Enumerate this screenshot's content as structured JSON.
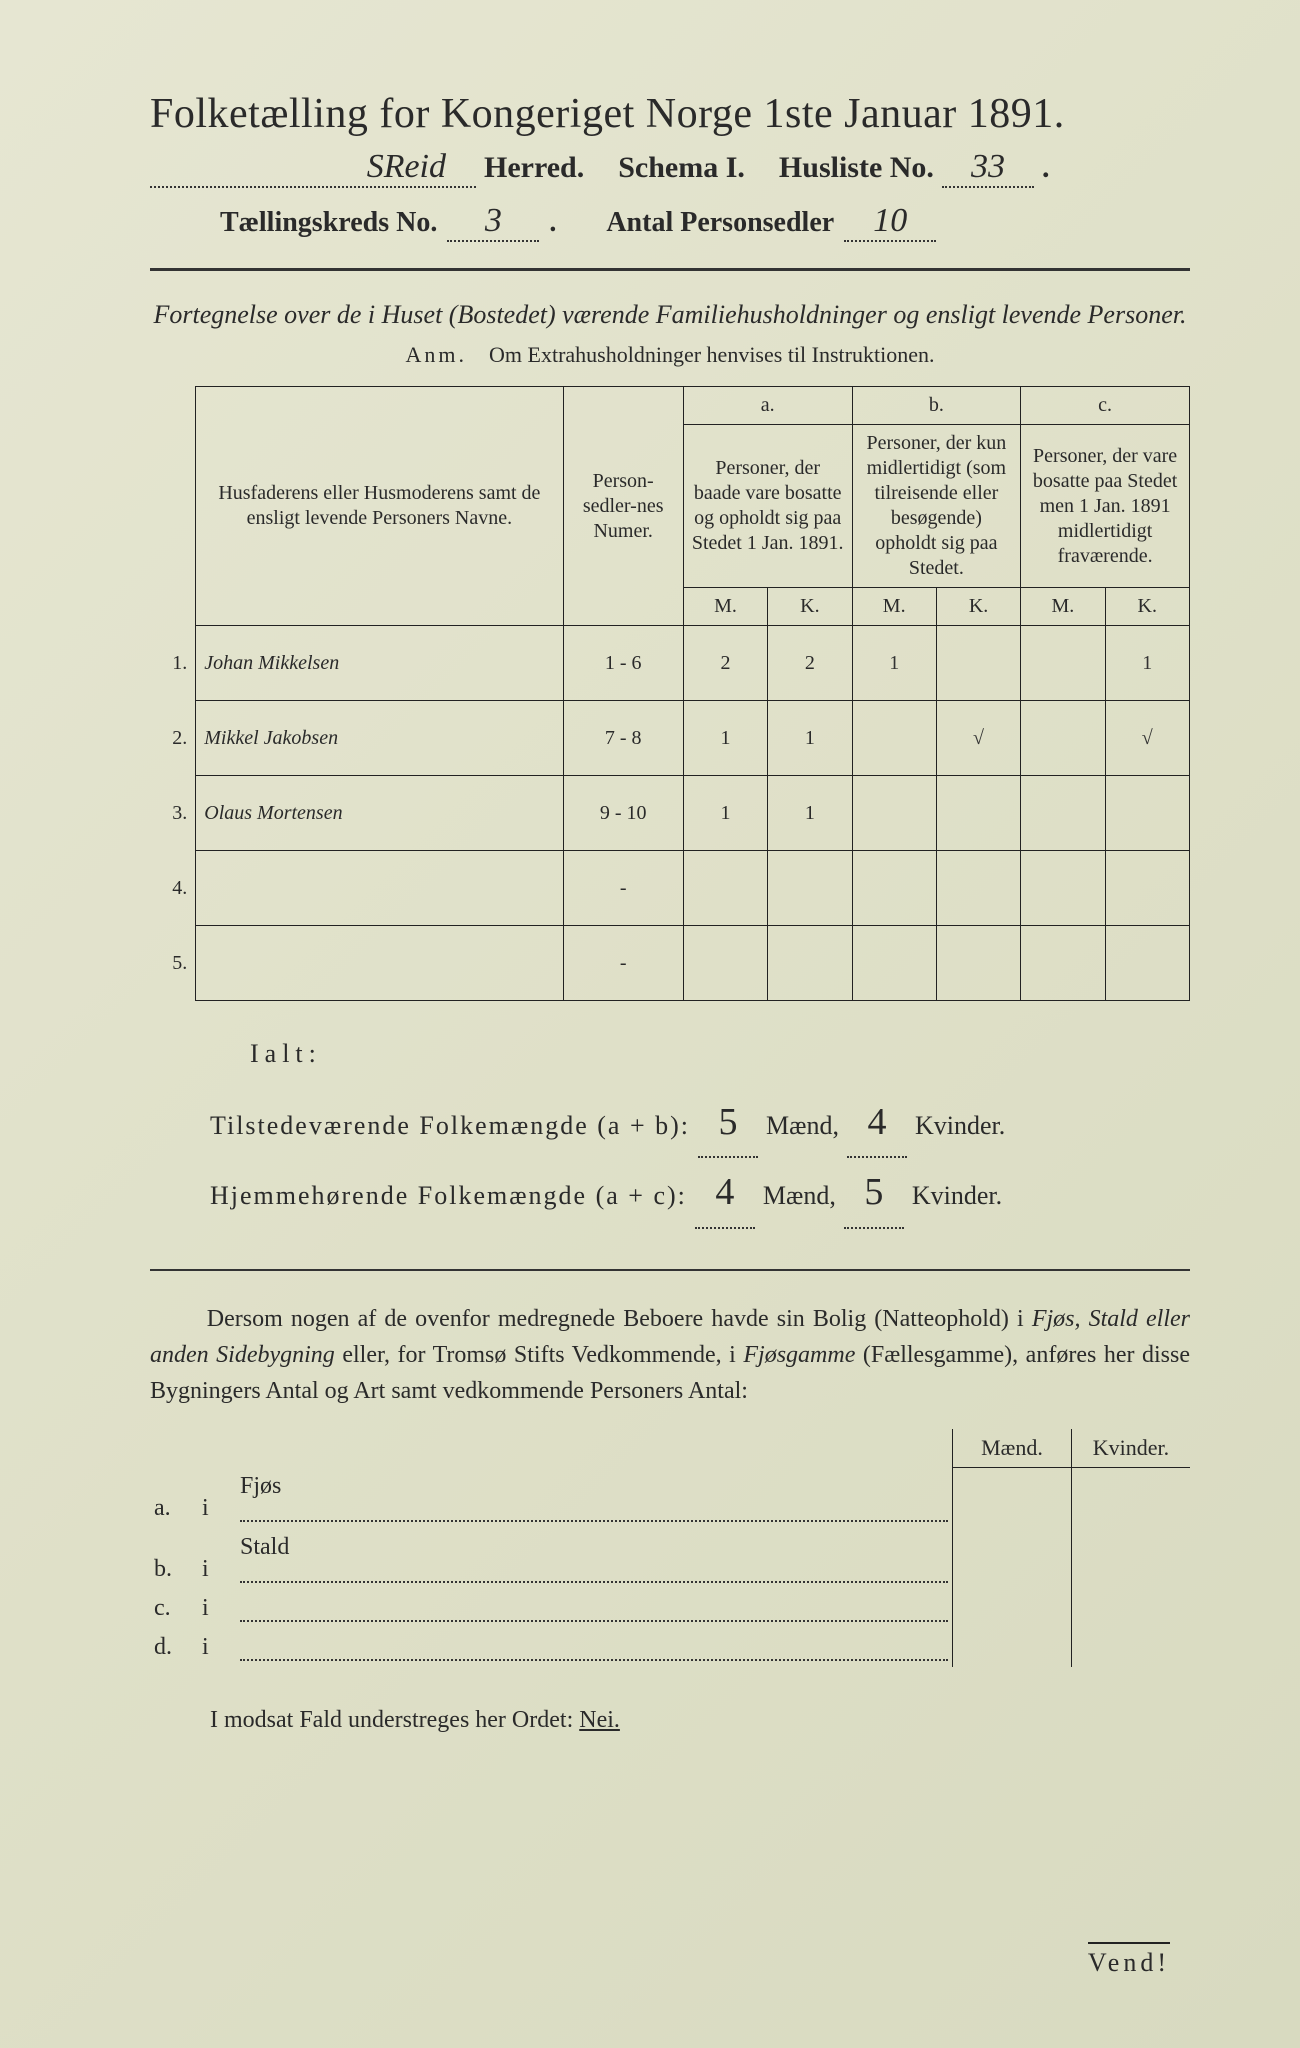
{
  "header": {
    "title": "Folketælling for Kongeriget Norge 1ste Januar 1891.",
    "herred_value": "SReid",
    "herred_label": "Herred.",
    "schema_label": "Schema I.",
    "husliste_label": "Husliste No.",
    "husliste_value": "33",
    "kreds_label": "Tællingskreds No.",
    "kreds_value": "3",
    "antal_label": "Antal Personsedler",
    "antal_value": "10"
  },
  "intro": {
    "line": "Fortegnelse over de i Huset (Bostedet) værende Familiehusholdninger og ensligt levende Personer.",
    "anm_label": "Anm.",
    "anm_text": "Om Extrahusholdninger henvises til Instruktionen."
  },
  "table": {
    "col1": "Husfaderens eller Husmoderens samt de ensligt levende Personers Navne.",
    "col2": "Person-sedler-nes Numer.",
    "col_a_letter": "a.",
    "col_a": "Personer, der baade vare bosatte og opholdt sig paa Stedet 1 Jan. 1891.",
    "col_b_letter": "b.",
    "col_b": "Personer, der kun midlertidigt (som tilreisende eller besøgende) opholdt sig paa Stedet.",
    "col_c_letter": "c.",
    "col_c": "Personer, der vare bosatte paa Stedet men 1 Jan. 1891 midlertidigt fraværende.",
    "m": "M.",
    "k": "K.",
    "rows": [
      {
        "n": "1.",
        "name": "Johan Mikkelsen",
        "num": "1 - 6",
        "am": "2",
        "ak": "2",
        "bm": "1",
        "bk": "",
        "cm": "",
        "ck": "1"
      },
      {
        "n": "2.",
        "name": "Mikkel Jakobsen",
        "num": "7 - 8",
        "am": "1",
        "ak": "1",
        "bm": "",
        "bk": "√",
        "cm": "",
        "ck": "√"
      },
      {
        "n": "3.",
        "name": "Olaus Mortensen",
        "num": "9 - 10",
        "am": "1",
        "ak": "1",
        "bm": "",
        "bk": "",
        "cm": "",
        "ck": ""
      },
      {
        "n": "4.",
        "name": "",
        "num": "-",
        "am": "",
        "ak": "",
        "bm": "",
        "bk": "",
        "cm": "",
        "ck": ""
      },
      {
        "n": "5.",
        "name": "",
        "num": "-",
        "am": "",
        "ak": "",
        "bm": "",
        "bk": "",
        "cm": "",
        "ck": ""
      }
    ]
  },
  "ialt": {
    "label": "Ialt:",
    "row1_label": "Tilstedeværende Folkemængde (a + b):",
    "row1_m": "5",
    "row1_k": "4",
    "row2_label": "Hjemmehørende Folkemængde (a + c):",
    "row2_m": "4",
    "row2_k": "5",
    "maend": "Mænd,",
    "kvinder": "Kvinder."
  },
  "para": {
    "text1": "Dersom nogen af de ovenfor medregnede Beboere havde sin Bolig (Natteophold) i ",
    "em1": "Fjøs, Stald eller anden Sidebygning",
    "text2": " eller, for Tromsø Stifts Vedkommende, i ",
    "em2": "Fjøsgamme",
    "text3": " (Fællesgamme), anføres her disse Bygningers Antal og Art samt vedkommende Personers Antal:"
  },
  "bottom": {
    "maend": "Mænd.",
    "kvinder": "Kvinder.",
    "rows": [
      {
        "l": "a.",
        "i": "i",
        "label": "Fjøs"
      },
      {
        "l": "b.",
        "i": "i",
        "label": "Stald"
      },
      {
        "l": "c.",
        "i": "i",
        "label": ""
      },
      {
        "l": "d.",
        "i": "i",
        "label": ""
      }
    ]
  },
  "footer": {
    "nei": "I modsat Fald understreges her Ordet:",
    "nei_word": "Nei.",
    "vend": "Vend!"
  },
  "colors": {
    "text": "#2a2a2a",
    "bg": "#e2e3cc",
    "border": "#222222"
  }
}
